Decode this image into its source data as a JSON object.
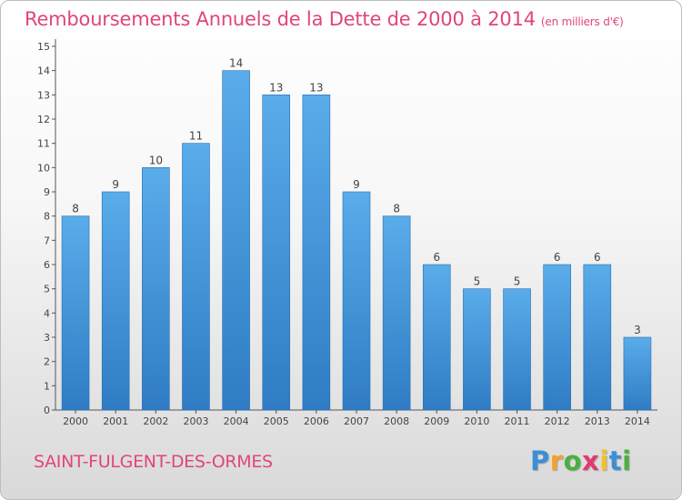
{
  "header": {
    "title": "Remboursements Annuels de la Dette de 2000 à 2014",
    "unit": "(en milliers d'€)"
  },
  "footer": {
    "commune": "SAINT-FULGENT-DES-ORMES",
    "logo": {
      "letters": [
        "P",
        "r",
        "o",
        "x",
        "i",
        "t",
        "i"
      ],
      "colors": [
        "#3a8fd6",
        "#f2a12b",
        "#4ab041",
        "#e03a6f",
        "#f2c12b",
        "#3a8fd6",
        "#4ab041"
      ]
    }
  },
  "chart_data": {
    "type": "bar",
    "title": "Remboursements Annuels de la Dette de 2000 à 2014",
    "subtitle": "(en milliers d'€)",
    "xlabel": "",
    "ylabel": "",
    "categories": [
      "2000",
      "2001",
      "2002",
      "2003",
      "2004",
      "2005",
      "2006",
      "2007",
      "2008",
      "2009",
      "2010",
      "2011",
      "2012",
      "2013",
      "2014"
    ],
    "values": [
      8,
      9,
      10,
      11,
      14,
      13,
      13,
      9,
      8,
      6,
      5,
      5,
      6,
      6,
      3
    ],
    "ylim": [
      0,
      15
    ],
    "yticks": [
      0,
      1,
      2,
      3,
      4,
      5,
      6,
      7,
      8,
      9,
      10,
      11,
      12,
      13,
      14,
      15
    ],
    "grid": false,
    "bar_color": "#3d8fd6",
    "data_labels": true
  }
}
